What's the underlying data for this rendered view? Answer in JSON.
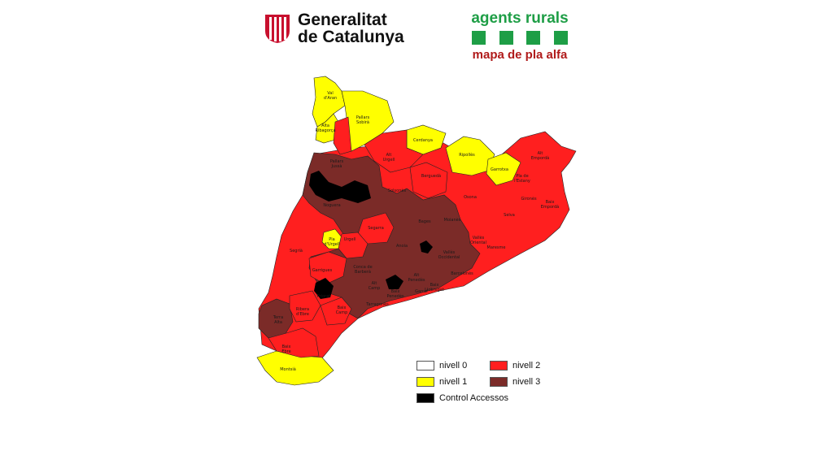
{
  "header": {
    "generalitat_line1": "Generalitat",
    "generalitat_line2": "de Catalunya",
    "agents_title": "agents rurals",
    "agents_subtitle": "mapa de pla alfa"
  },
  "colors": {
    "nivell_0": "#ffffff",
    "nivell_1": "#ffff00",
    "nivell_2": "#ff1f1f",
    "nivell_3": "#7b2b28",
    "control": "#000000",
    "brand_green": "#1e9e46",
    "brand_red": "#b01a1a"
  },
  "legend": [
    {
      "label": "nivell 0",
      "color": "#ffffff"
    },
    {
      "label": "nivell 2",
      "color": "#ff1f1f"
    },
    {
      "label": "nivell 1",
      "color": "#ffff00"
    },
    {
      "label": "nivell 3",
      "color": "#7b2b28"
    },
    {
      "label": "Control Accessos",
      "color": "#000000"
    }
  ],
  "comarques": [
    {
      "name": "Val d'Aran",
      "level": 1
    },
    {
      "name": "Pallars Sobirà",
      "level": 1
    },
    {
      "name": "Alta Ribagorça",
      "level": 1
    },
    {
      "name": "Cerdanya",
      "level": 1
    },
    {
      "name": "Ripollès",
      "level": 1
    },
    {
      "name": "Garrotxa",
      "level": 1
    },
    {
      "name": "Pla d'Urgell",
      "level": 1
    },
    {
      "name": "Montsià",
      "level": 1
    },
    {
      "name": "Alt Empordà",
      "level": 2
    },
    {
      "name": "Alt Urgell",
      "level": 2
    },
    {
      "name": "Pallars Jussà",
      "level": 3
    },
    {
      "name": "Berguedà",
      "level": 2
    },
    {
      "name": "Pla de l'Estany",
      "level": 2
    },
    {
      "name": "Solsonès",
      "level": 3
    },
    {
      "name": "Osona",
      "level": 2
    },
    {
      "name": "Gironès",
      "level": 2
    },
    {
      "name": "Baix Empordà",
      "level": 2
    },
    {
      "name": "Noguera",
      "level": 3
    },
    {
      "name": "Bages",
      "level": 3
    },
    {
      "name": "Moianès",
      "level": 3
    },
    {
      "name": "Selva",
      "level": 2
    },
    {
      "name": "Segarra",
      "level": 2
    },
    {
      "name": "Urgell",
      "level": 2
    },
    {
      "name": "Anoia",
      "level": 3
    },
    {
      "name": "Vallès Oriental",
      "level": 2
    },
    {
      "name": "Segrià",
      "level": 2
    },
    {
      "name": "Vallès Occidental",
      "level": 3
    },
    {
      "name": "Maresme",
      "level": 2
    },
    {
      "name": "Garrigues",
      "level": 2
    },
    {
      "name": "Conca de Barberà",
      "level": 3
    },
    {
      "name": "Alt Camp",
      "level": 3
    },
    {
      "name": "Alt Penedès",
      "level": 3
    },
    {
      "name": "Baix Llobregat",
      "level": 3
    },
    {
      "name": "Barcelonès",
      "level": 2
    },
    {
      "name": "Priorat",
      "level": 3
    },
    {
      "name": "Ribera d'Ebre",
      "level": 2
    },
    {
      "name": "Baix Camp",
      "level": 2
    },
    {
      "name": "Tarragonès",
      "level": 3
    },
    {
      "name": "Baix Penedès",
      "level": 3
    },
    {
      "name": "Garraf",
      "level": 3
    },
    {
      "name": "Terra Alta",
      "level": 3
    },
    {
      "name": "Baix Ebre",
      "level": 2
    }
  ]
}
